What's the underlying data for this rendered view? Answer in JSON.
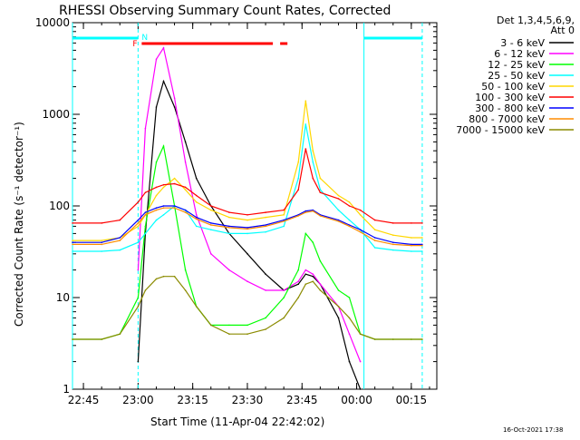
{
  "chart_data": {
    "type": "line",
    "title": "RHESSI Observing Summary Count Rates, Corrected",
    "xlabel": "Start Time (11-Apr-04 22:42:02)",
    "ylabel": "Corrected Count Rate (s⁻¹ detector⁻¹)",
    "y_scale": "log",
    "ylim": [
      1,
      10000
    ],
    "xlim": [
      "22:42",
      "00:22"
    ],
    "x_tick_labels": [
      "22:45",
      "23:00",
      "23:15",
      "23:30",
      "23:45",
      "00:00",
      "00:15"
    ],
    "y_tick_labels": [
      "1",
      "10",
      "100",
      "1000",
      "10000"
    ],
    "timestamp": "16-Oct-2021 17:38",
    "legend_header": [
      "Det 1,3,4,5,6,9,",
      "Att 0"
    ],
    "legend_position": "right, outside plot",
    "markers": {
      "flare_label": "F",
      "night_label": "N"
    },
    "x_times": [
      "22:42",
      "22:50",
      "22:55",
      "23:00",
      "23:02",
      "23:05",
      "23:07",
      "23:10",
      "23:13",
      "23:16",
      "23:20",
      "23:25",
      "23:30",
      "23:35",
      "23:40",
      "23:44",
      "23:46",
      "23:48",
      "23:50",
      "23:55",
      "23:58",
      "00:01",
      "00:05",
      "00:10",
      "00:15",
      "00:18"
    ],
    "series": [
      {
        "name": "3 - 6 keV",
        "color": "#000000",
        "values": [
          null,
          null,
          null,
          2,
          50,
          1200,
          2300,
          1200,
          500,
          200,
          100,
          50,
          30,
          18,
          12,
          14,
          18,
          17,
          14,
          6,
          2,
          1,
          null,
          null,
          null,
          null
        ]
      },
      {
        "name": "6 - 12 keV",
        "color": "#ff00ff",
        "values": [
          null,
          null,
          null,
          20,
          700,
          4000,
          5300,
          1500,
          300,
          80,
          30,
          20,
          15,
          12,
          12,
          15,
          20,
          18,
          14,
          8,
          4,
          2,
          null,
          null,
          null,
          null
        ]
      },
      {
        "name": "12 - 25 keV",
        "color": "#00ff00",
        "values": [
          3.5,
          3.5,
          4,
          10,
          60,
          300,
          450,
          100,
          20,
          8,
          5,
          5,
          5,
          6,
          10,
          20,
          50,
          40,
          25,
          12,
          10,
          4,
          3.5,
          3.5,
          3.5,
          3.5
        ]
      },
      {
        "name": "25 - 50 keV",
        "color": "#00ffff",
        "values": [
          32,
          32,
          33,
          40,
          50,
          70,
          80,
          100,
          90,
          60,
          55,
          50,
          50,
          52,
          60,
          200,
          780,
          300,
          150,
          90,
          70,
          55,
          35,
          33,
          32,
          32
        ]
      },
      {
        "name": "50 - 100 keV",
        "color": "#ffd700",
        "values": [
          42,
          42,
          45,
          60,
          80,
          130,
          160,
          200,
          150,
          110,
          90,
          75,
          70,
          75,
          80,
          300,
          1400,
          400,
          200,
          130,
          110,
          80,
          55,
          48,
          45,
          45
        ]
      },
      {
        "name": "100 - 300 keV",
        "color": "#ff0000",
        "values": [
          65,
          65,
          70,
          110,
          140,
          160,
          170,
          175,
          160,
          130,
          100,
          85,
          80,
          85,
          90,
          150,
          420,
          200,
          140,
          120,
          100,
          90,
          70,
          65,
          65,
          65
        ]
      },
      {
        "name": "300 - 800 keV",
        "color": "#0000ff",
        "values": [
          40,
          40,
          45,
          70,
          85,
          95,
          100,
          100,
          90,
          75,
          65,
          60,
          58,
          62,
          70,
          80,
          88,
          90,
          80,
          70,
          62,
          55,
          45,
          40,
          38,
          38
        ]
      },
      {
        "name": "800 - 7000 keV",
        "color": "#ff8c00",
        "values": [
          38,
          38,
          42,
          65,
          80,
          90,
          95,
          95,
          85,
          72,
          62,
          58,
          56,
          60,
          68,
          78,
          85,
          88,
          78,
          68,
          60,
          52,
          42,
          38,
          37,
          37
        ]
      },
      {
        "name": "7000 - 15000 keV",
        "color": "#8b8b00",
        "values": [
          3.5,
          3.5,
          4,
          8,
          12,
          16,
          17,
          17,
          12,
          8,
          5,
          4,
          4,
          4.5,
          6,
          10,
          14,
          15,
          12,
          8,
          6,
          4,
          3.5,
          3.5,
          3.5,
          3.5
        ]
      }
    ]
  }
}
